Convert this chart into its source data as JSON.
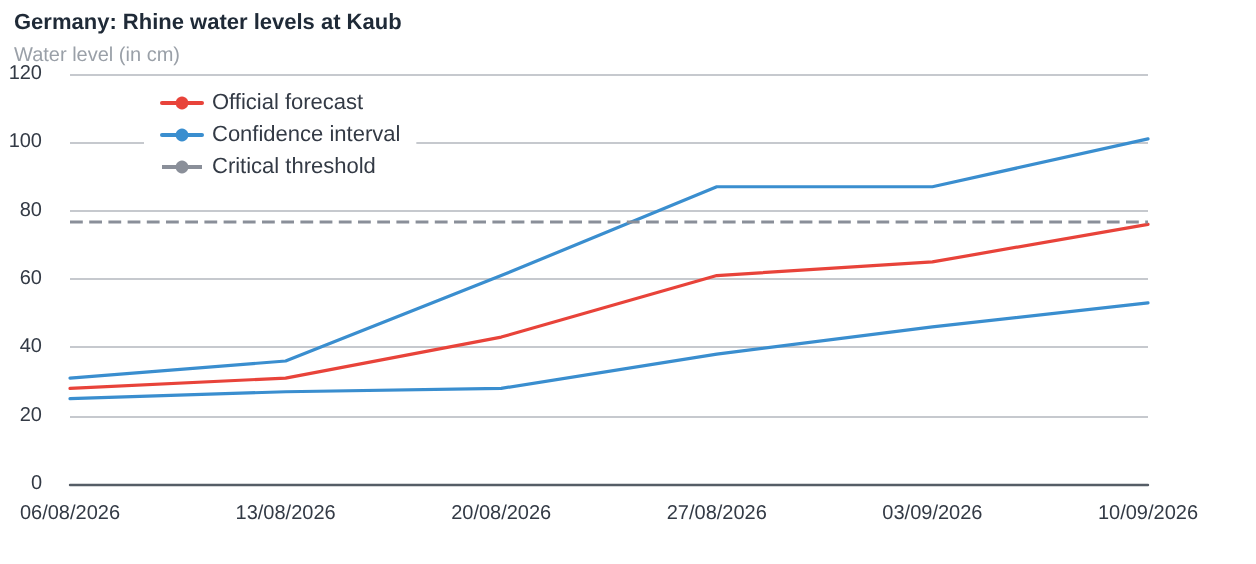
{
  "chart_data": {
    "type": "line",
    "title": "Germany: Rhine water levels at Kaub",
    "ylabel": "Water level (in cm)",
    "categories": [
      "06/08/2026",
      "13/08/2026",
      "20/08/2026",
      "27/08/2026",
      "03/09/2026",
      "10/09/2026"
    ],
    "series": [
      {
        "name": "Official forecast",
        "color": "#e8433a",
        "values": [
          28,
          31,
          43,
          61,
          65,
          76
        ]
      },
      {
        "name": "Confidence interval",
        "color": "#3a8ecf",
        "values": [
          31,
          36,
          61,
          87,
          87,
          101
        ]
      },
      {
        "color": "#3a8ecf",
        "values": [
          25,
          27,
          28,
          38,
          46,
          53
        ]
      }
    ],
    "ref_lines": [
      {
        "axis": "y",
        "value": 77,
        "label": "Critical threshold",
        "color": "#8a8f99",
        "line_style": "dashed"
      }
    ],
    "ylim": [
      0,
      120
    ],
    "yticks": [
      0,
      20,
      40,
      60,
      80,
      100,
      120
    ],
    "grid": "y",
    "legend": "top left",
    "marker": "none",
    "line_style": "solid"
  }
}
